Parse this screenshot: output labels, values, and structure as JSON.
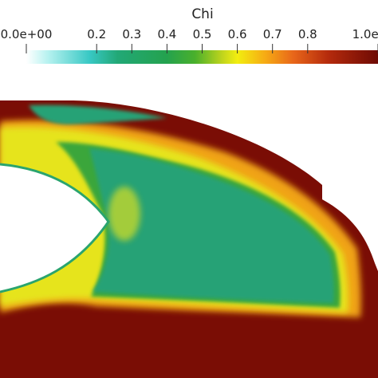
{
  "colorbar": {
    "title": "Chi",
    "ticks": [
      {
        "label": "0.0e+00",
        "value": 0.0
      },
      {
        "label": "0.2",
        "value": 0.2
      },
      {
        "label": "0.3",
        "value": 0.3
      },
      {
        "label": "0.4",
        "value": 0.4
      },
      {
        "label": "0.5",
        "value": 0.5
      },
      {
        "label": "0.6",
        "value": 0.6
      },
      {
        "label": "0.7",
        "value": 0.7
      },
      {
        "label": "0.8",
        "value": 0.8
      },
      {
        "label": "1.0e+00",
        "value": 1.0
      }
    ],
    "range": [
      0,
      1
    ],
    "colormap": [
      {
        "value": 0.0,
        "color": "#ffffff"
      },
      {
        "value": 0.06,
        "color": "#b8f2f0"
      },
      {
        "value": 0.18,
        "color": "#38c8c4"
      },
      {
        "value": 0.26,
        "color": "#22a876"
      },
      {
        "value": 0.4,
        "color": "#24a24e"
      },
      {
        "value": 0.48,
        "color": "#4ab02c"
      },
      {
        "value": 0.56,
        "color": "#c4d61c"
      },
      {
        "value": 0.6,
        "color": "#f2ee10"
      },
      {
        "value": 0.68,
        "color": "#f6aa14"
      },
      {
        "value": 0.76,
        "color": "#e8661a"
      },
      {
        "value": 0.86,
        "color": "#b42a0c"
      },
      {
        "value": 1.0,
        "color": "#6e0a04"
      }
    ]
  },
  "field": {
    "colors": {
      "background": "#ffffff",
      "low": "#26a276",
      "mid_green": "#3aa63a",
      "yellow": "#e6e41a",
      "orange": "#f0a318",
      "high": "#7a0d05"
    }
  }
}
